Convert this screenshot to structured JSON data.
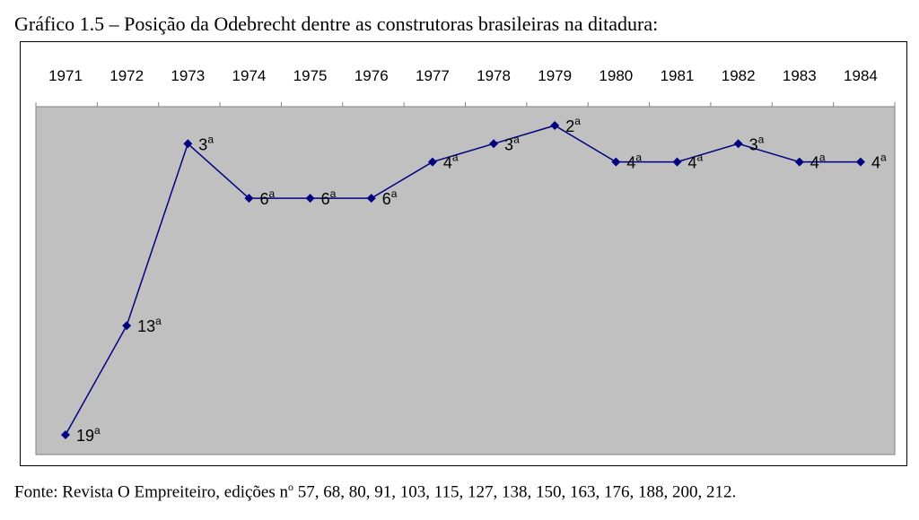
{
  "figure": {
    "title": "Gráfico 1.5 – Posição da Odebrecht dentre as construtoras brasileiras na ditadura:",
    "source_pre": "Fonte: Revista O Empreiteiro, edições n",
    "source_sup": "o",
    "source_post": " 57, 68, 80, 91, 103, 115, 127, 138, 150, 163, 176, 188, 200, 212."
  },
  "chart_data": {
    "type": "line",
    "title": "",
    "xlabel": "",
    "ylabel": "",
    "x": [
      "1971",
      "1972",
      "1973",
      "1974",
      "1975",
      "1976",
      "1977",
      "1978",
      "1979",
      "1980",
      "1981",
      "1982",
      "1983",
      "1984"
    ],
    "series": [
      {
        "values": [
          19,
          13,
          3,
          6,
          6,
          6,
          4,
          3,
          2,
          4,
          4,
          3,
          4,
          4
        ],
        "labels": [
          "19",
          "13",
          "3",
          "6",
          "6",
          "6",
          "4",
          "3",
          "2",
          "4",
          "4",
          "3",
          "4",
          "4"
        ],
        "label_suffix": "a",
        "color": "#000080",
        "marker": "diamond"
      }
    ],
    "y_inverted": true,
    "ylim": [
      1,
      20
    ],
    "x_axis_position": "top",
    "grid": false,
    "legend": "none",
    "plot_background": "#c0c0c0"
  }
}
